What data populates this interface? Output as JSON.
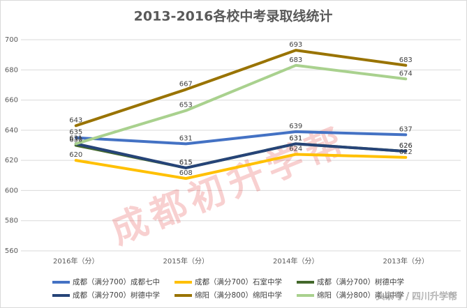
{
  "chart_data": {
    "type": "line",
    "title": "2013-2016各校中考录取线统计",
    "categories": [
      "2016年（分）",
      "2015年（分）",
      "2014年（分）",
      "2013年（分）"
    ],
    "series": [
      {
        "name": "成都（满分700）成都七中",
        "color": "#4472c4",
        "values": [
          635,
          631,
          639,
          637
        ]
      },
      {
        "name": "成都（满分700）石室中学",
        "color": "#ffc000",
        "values": [
          620,
          608,
          624,
          622
        ]
      },
      {
        "name": "成都（满分700）树德中学",
        "color": "#43682b",
        "values": [
          630,
          615,
          631,
          626
        ]
      },
      {
        "name": "成都（满分700）树德中学",
        "color": "#264478",
        "values": [
          631,
          615,
          631,
          626
        ]
      },
      {
        "name": "绵阳（满分800）绵阳中学",
        "color": "#997300",
        "values": [
          643,
          667,
          693,
          683
        ]
      },
      {
        "name": "绵阳（满分800）南山中学",
        "color": "#a9d18e",
        "values": [
          631,
          653,
          683,
          674
        ]
      }
    ],
    "ylim": [
      560,
      700
    ],
    "yticks": [
      560,
      580,
      600,
      620,
      640,
      660,
      680,
      700
    ],
    "grid": true,
    "legend": "bottom",
    "watermark": "成都初升学帮",
    "source_watermark": "头条号 / 四川升学帮"
  }
}
